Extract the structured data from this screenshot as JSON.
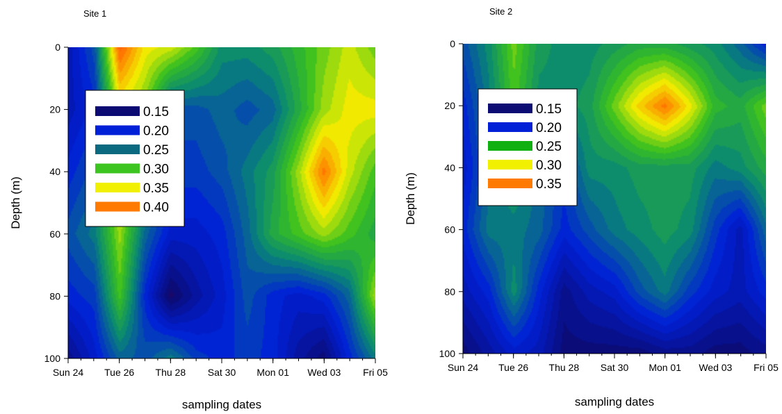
{
  "chart_data": [
    {
      "type": "heatmap",
      "title": "Site 1",
      "xlabel": "sampling dates",
      "ylabel": "Depth (m)",
      "x_ticks": [
        "Sun 24",
        "Tue 26",
        "Thu 28",
        "Sat 30",
        "Mon 01",
        "Wed 03",
        "Fri 05"
      ],
      "y_ticks": [
        "0",
        "20",
        "40",
        "60",
        "80",
        "100"
      ],
      "ylim": [
        100,
        0
      ],
      "x_day_range": [
        0,
        12
      ],
      "legend": {
        "position": "upper-left",
        "levels": [
          "0.15",
          "0.20",
          "0.25",
          "0.30",
          "0.35",
          "0.40"
        ],
        "colors": [
          "#0b0b73",
          "#0020d8",
          "#0b6a80",
          "#3cc520",
          "#f0f000",
          "#ff7a00"
        ]
      },
      "depths": [
        0,
        20,
        40,
        60,
        80,
        100
      ],
      "values": [
        [
          0.18,
          0.22,
          0.38,
          0.33,
          0.32,
          0.29,
          0.25,
          0.25,
          0.26,
          0.28,
          0.3,
          0.32,
          0.3
        ],
        [
          0.18,
          0.2,
          0.32,
          0.3,
          0.22,
          0.22,
          0.23,
          0.22,
          0.23,
          0.27,
          0.31,
          0.33,
          0.33
        ],
        [
          0.2,
          0.22,
          0.33,
          0.26,
          0.21,
          0.21,
          0.22,
          0.24,
          0.26,
          0.31,
          0.37,
          0.32,
          0.29
        ],
        [
          0.22,
          0.24,
          0.31,
          0.23,
          0.19,
          0.19,
          0.2,
          0.23,
          0.27,
          0.29,
          0.31,
          0.29,
          0.27
        ],
        [
          0.2,
          0.21,
          0.29,
          0.2,
          0.14,
          0.17,
          0.19,
          0.22,
          0.2,
          0.19,
          0.2,
          0.23,
          0.31
        ],
        [
          0.16,
          0.19,
          0.23,
          0.22,
          0.24,
          0.21,
          0.2,
          0.21,
          0.2,
          0.17,
          0.15,
          0.2,
          0.24
        ]
      ]
    },
    {
      "type": "heatmap",
      "title": "Site 2",
      "xlabel": "sampling dates",
      "ylabel": "Depth (m)",
      "x_ticks": [
        "Sun 24",
        "Tue 26",
        "Thu 28",
        "Sat 30",
        "Mon 01",
        "Wed 03",
        "Fri 05"
      ],
      "y_ticks": [
        "0",
        "20",
        "40",
        "60",
        "80",
        "100"
      ],
      "ylim": [
        100,
        0
      ],
      "x_day_range": [
        0,
        12
      ],
      "legend": {
        "position": "upper-left",
        "levels": [
          "0.15",
          "0.20",
          "0.25",
          "0.30",
          "0.35"
        ],
        "colors": [
          "#0b0b73",
          "#0020d8",
          "#10b010",
          "#f0f000",
          "#ff7a00"
        ]
      },
      "depths": [
        0,
        20,
        40,
        60,
        80,
        100
      ],
      "values": [
        [
          0.22,
          0.25,
          0.3,
          0.26,
          0.25,
          0.25,
          0.26,
          0.27,
          0.27,
          0.26,
          0.25,
          0.23,
          0.2
        ],
        [
          0.2,
          0.24,
          0.29,
          0.25,
          0.25,
          0.26,
          0.3,
          0.34,
          0.37,
          0.33,
          0.28,
          0.27,
          0.3
        ],
        [
          0.19,
          0.23,
          0.26,
          0.23,
          0.21,
          0.25,
          0.25,
          0.26,
          0.26,
          0.26,
          0.24,
          0.25,
          0.27
        ],
        [
          0.2,
          0.24,
          0.24,
          0.23,
          0.2,
          0.22,
          0.24,
          0.25,
          0.26,
          0.25,
          0.21,
          0.18,
          0.23
        ],
        [
          0.18,
          0.2,
          0.25,
          0.2,
          0.16,
          0.18,
          0.19,
          0.22,
          0.24,
          0.21,
          0.19,
          0.18,
          0.2
        ],
        [
          0.15,
          0.17,
          0.19,
          0.18,
          0.15,
          0.15,
          0.15,
          0.15,
          0.16,
          0.16,
          0.15,
          0.15,
          0.16
        ]
      ]
    }
  ]
}
